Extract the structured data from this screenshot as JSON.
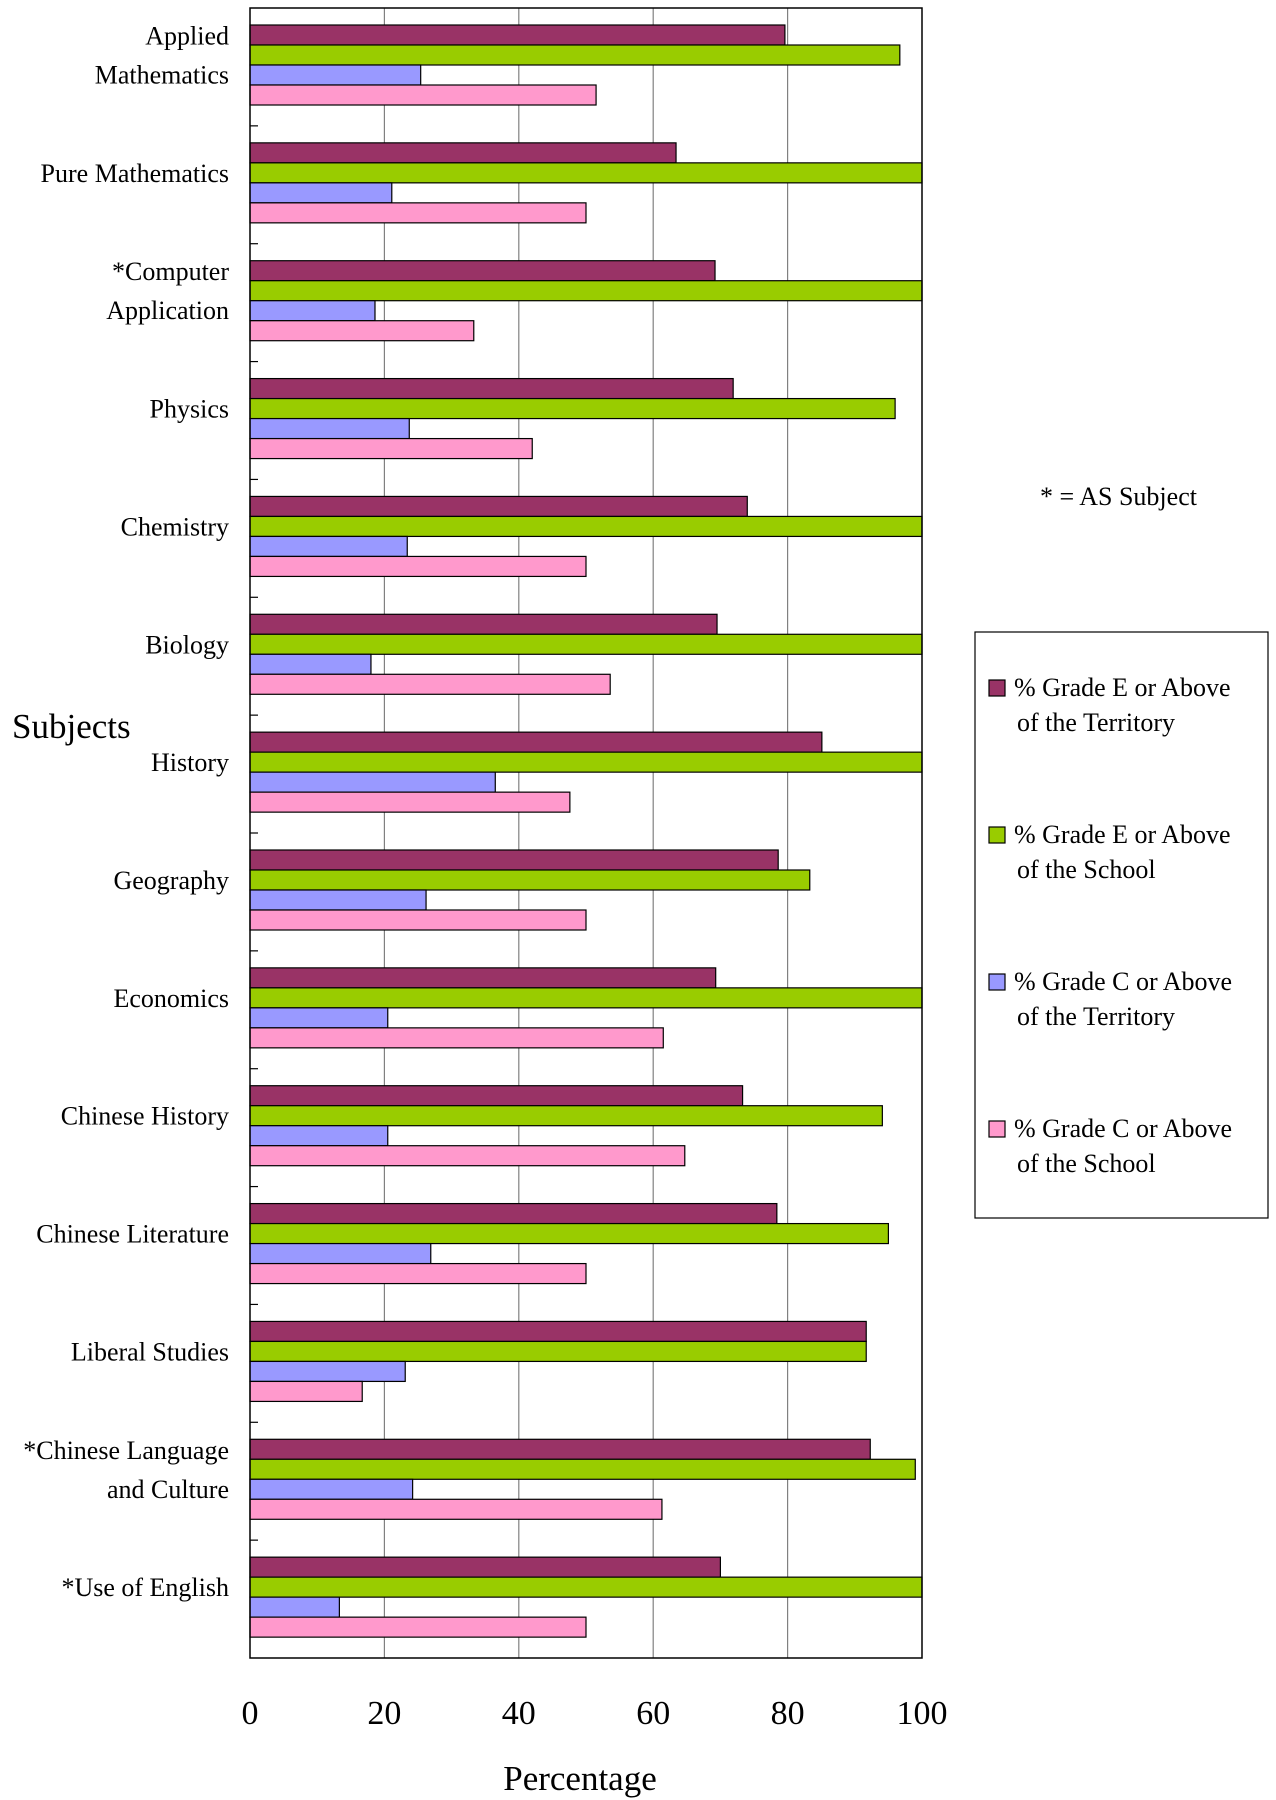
{
  "chart_data": {
    "type": "bar",
    "orientation": "horizontal",
    "xlabel": "Percentage",
    "ylabel": "Subjects",
    "xlim": [
      0,
      100
    ],
    "xticks": [
      "0",
      "20",
      "40",
      "60",
      "80",
      "100"
    ],
    "grid": "vertical lines at x ticks",
    "legend_position": "right",
    "note": "* = AS Subject",
    "categories": [
      "Applied Mathematics",
      "Pure Mathematics",
      "*Computer Application",
      "Physics",
      "Chemistry",
      "Biology",
      "History",
      "Geography",
      "Economics",
      "Chinese History",
      "Chinese Literature",
      "Liberal Studies",
      "*Chinese Language and Culture",
      "*Use of English"
    ],
    "category_lines": [
      [
        "Applied",
        "Mathematics"
      ],
      [
        "Pure Mathematics"
      ],
      [
        "*Computer",
        "Application"
      ],
      [
        "Physics"
      ],
      [
        "Chemistry"
      ],
      [
        "Biology"
      ],
      [
        "History"
      ],
      [
        "Geography"
      ],
      [
        "Economics"
      ],
      [
        "Chinese History"
      ],
      [
        "Chinese Literature"
      ],
      [
        "Liberal Studies"
      ],
      [
        "*Chinese Language",
        "and Culture"
      ],
      [
        "*Use of English"
      ]
    ],
    "series": [
      {
        "name": "% Grade E or Above of the Territory",
        "legend_lines": [
          "% Grade E or Above",
          "of the Territory"
        ],
        "color": "#993366",
        "values": [
          79.6,
          63.4,
          69.2,
          71.9,
          74.0,
          69.5,
          85.1,
          78.6,
          69.3,
          73.3,
          78.4,
          91.7,
          92.3,
          70.0
        ]
      },
      {
        "name": "% Grade E or Above of the School",
        "legend_lines": [
          "% Grade E or Above",
          "of the School"
        ],
        "color": "#99CC00",
        "values": [
          96.7,
          100,
          100,
          96.0,
          100,
          100,
          100,
          83.3,
          100,
          94.1,
          95.0,
          91.7,
          99.0,
          100
        ]
      },
      {
        "name": "% Grade C or Above of the Territory",
        "legend_lines": [
          "% Grade C or Above",
          "of the Territory"
        ],
        "color": "#9999FF",
        "values": [
          25.4,
          21.1,
          18.6,
          23.7,
          23.4,
          18.0,
          36.5,
          26.2,
          20.5,
          20.5,
          26.9,
          23.1,
          24.2,
          13.3
        ]
      },
      {
        "name": "% Grade C or Above of the School",
        "legend_lines": [
          "% Grade C or Above",
          "of the School"
        ],
        "color": "#FF99CC",
        "values": [
          51.5,
          50.0,
          33.3,
          42.0,
          50.0,
          53.6,
          47.6,
          50.0,
          61.5,
          64.7,
          50.0,
          16.7,
          61.3,
          50.0
        ]
      }
    ]
  }
}
